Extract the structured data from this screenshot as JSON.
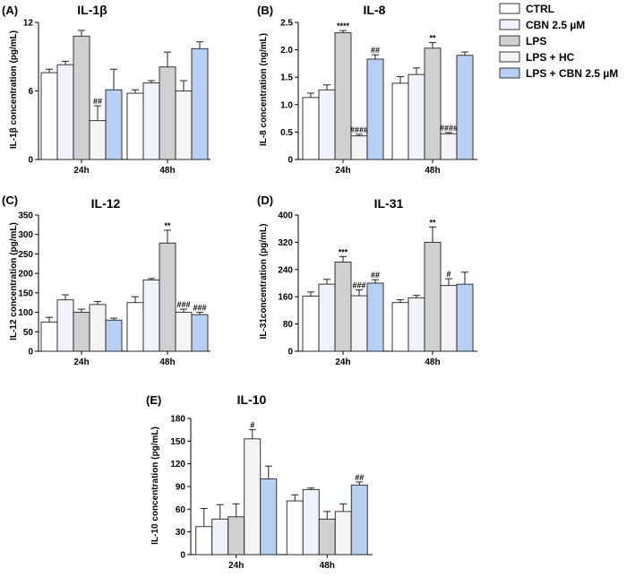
{
  "groups": [
    "CTRL",
    "CBN 2.5 µM",
    "LPS",
    "LPS + HC",
    "LPS + CBN 2.5 µM"
  ],
  "colors": [
    "#ffffff",
    "#eef2fb",
    "#d0d0d0",
    "#f4f4f4",
    "#b7cff2"
  ],
  "chart_data": [
    {
      "type": "bar",
      "panel": "(A)",
      "title": "IL-1β",
      "ylabel": "IL-1β concentration (pg/mL)",
      "ylim": [
        0,
        12
      ],
      "yticks": [
        "0",
        "6",
        "12"
      ],
      "categories": [
        "24h",
        "48h"
      ],
      "series": [
        {
          "name": "CTRL",
          "values": [
            7.6,
            5.8
          ],
          "errors": [
            0.3,
            0.3
          ],
          "annotations": [
            "",
            ""
          ]
        },
        {
          "name": "CBN 2.5 µM",
          "values": [
            8.3,
            6.7
          ],
          "errors": [
            0.3,
            0.2
          ],
          "annotations": [
            "",
            ""
          ]
        },
        {
          "name": "LPS",
          "values": [
            10.8,
            8.1
          ],
          "errors": [
            0.5,
            1.3
          ],
          "annotations": [
            "",
            ""
          ]
        },
        {
          "name": "LPS + HC",
          "values": [
            3.4,
            6.0
          ],
          "errors": [
            1.3,
            0.9
          ],
          "annotations": [
            "##",
            ""
          ]
        },
        {
          "name": "LPS + CBN 2.5 µM",
          "values": [
            6.1,
            9.7
          ],
          "errors": [
            1.8,
            0.6
          ],
          "annotations": [
            "",
            ""
          ]
        }
      ]
    },
    {
      "type": "bar",
      "panel": "(B)",
      "title": "IL-8",
      "ylabel": "IL-8 concentration (ng/mL)",
      "ylim": [
        0,
        2.5
      ],
      "yticks": [
        "0",
        "0.5",
        "1.0",
        "1.5",
        "2.0",
        "2.5"
      ],
      "categories": [
        "24h",
        "48h"
      ],
      "series": [
        {
          "name": "CTRL",
          "values": [
            1.13,
            1.39
          ],
          "errors": [
            0.08,
            0.12
          ],
          "annotations": [
            "",
            ""
          ]
        },
        {
          "name": "CBN 2.5 µM",
          "values": [
            1.27,
            1.55
          ],
          "errors": [
            0.09,
            0.12
          ],
          "annotations": [
            "",
            ""
          ]
        },
        {
          "name": "LPS",
          "values": [
            2.31,
            2.03
          ],
          "errors": [
            0.04,
            0.1
          ],
          "annotations": [
            "****",
            "**"
          ]
        },
        {
          "name": "LPS + HC",
          "values": [
            0.43,
            0.47
          ],
          "errors": [
            0.03,
            0.02
          ],
          "annotations": [
            "####",
            "####"
          ]
        },
        {
          "name": "LPS + CBN 2.5 µM",
          "values": [
            1.83,
            1.9
          ],
          "errors": [
            0.08,
            0.06
          ],
          "annotations": [
            "##",
            ""
          ]
        }
      ]
    },
    {
      "type": "bar",
      "panel": "(C)",
      "title": "IL-12",
      "ylabel": "IL-12 concentration (pg/mL)",
      "ylim": [
        0,
        350
      ],
      "yticks": [
        "0",
        "50",
        "100",
        "150",
        "200",
        "250",
        "300",
        "350"
      ],
      "categories": [
        "24h",
        "48h"
      ],
      "series": [
        {
          "name": "CTRL",
          "values": [
            75,
            125
          ],
          "errors": [
            12,
            15
          ],
          "annotations": [
            "",
            ""
          ]
        },
        {
          "name": "CBN 2.5 µM",
          "values": [
            132,
            183
          ],
          "errors": [
            13,
            4
          ],
          "annotations": [
            "",
            ""
          ]
        },
        {
          "name": "LPS",
          "values": [
            100,
            278
          ],
          "errors": [
            8,
            33
          ],
          "annotations": [
            "",
            "**"
          ]
        },
        {
          "name": "LPS + HC",
          "values": [
            120,
            100
          ],
          "errors": [
            8,
            8
          ],
          "annotations": [
            "",
            "###"
          ]
        },
        {
          "name": "LPS + CBN 2.5 µM",
          "values": [
            80,
            94
          ],
          "errors": [
            5,
            6
          ],
          "annotations": [
            "",
            "###"
          ]
        }
      ]
    },
    {
      "type": "bar",
      "panel": "(D)",
      "title": "IL-31",
      "ylabel": "IL-31concentration (pg/mL)",
      "ylim": [
        0,
        400
      ],
      "yticks": [
        "0",
        "80",
        "160",
        "240",
        "320",
        "400"
      ],
      "categories": [
        "24h",
        "48h"
      ],
      "series": [
        {
          "name": "CTRL",
          "values": [
            162,
            143
          ],
          "errors": [
            12,
            8
          ],
          "annotations": [
            "",
            ""
          ]
        },
        {
          "name": "CBN 2.5 µM",
          "values": [
            197,
            157
          ],
          "errors": [
            14,
            7
          ],
          "annotations": [
            "",
            ""
          ]
        },
        {
          "name": "LPS",
          "values": [
            262,
            320
          ],
          "errors": [
            16,
            45
          ],
          "annotations": [
            "***",
            "**"
          ]
        },
        {
          "name": "LPS + HC",
          "values": [
            163,
            193
          ],
          "errors": [
            17,
            20
          ],
          "annotations": [
            "###",
            "#"
          ]
        },
        {
          "name": "LPS + CBN 2.5 µM",
          "values": [
            200,
            197
          ],
          "errors": [
            10,
            35
          ],
          "annotations": [
            "##",
            ""
          ]
        }
      ]
    },
    {
      "type": "bar",
      "panel": "(E)",
      "title": "IL-10",
      "ylabel": "IL-10 concentration (pg/mL)",
      "ylim": [
        0,
        180
      ],
      "yticks": [
        "0",
        "30",
        "60",
        "90",
        "120",
        "150",
        "180"
      ],
      "categories": [
        "24h",
        "48h"
      ],
      "series": [
        {
          "name": "CTRL",
          "values": [
            37,
            71
          ],
          "errors": [
            24,
            8
          ],
          "annotations": [
            "",
            ""
          ]
        },
        {
          "name": "CBN 2.5 µM",
          "values": [
            47,
            86
          ],
          "errors": [
            19,
            2
          ],
          "annotations": [
            "",
            ""
          ]
        },
        {
          "name": "LPS",
          "values": [
            50,
            47
          ],
          "errors": [
            17,
            10
          ],
          "annotations": [
            "",
            ""
          ]
        },
        {
          "name": "LPS + HC",
          "values": [
            153,
            57
          ],
          "errors": [
            12,
            10
          ],
          "annotations": [
            "#",
            ""
          ]
        },
        {
          "name": "LPS + CBN 2.5 µM",
          "values": [
            100,
            92
          ],
          "errors": [
            17,
            4
          ],
          "annotations": [
            "",
            "##"
          ]
        }
      ]
    }
  ]
}
